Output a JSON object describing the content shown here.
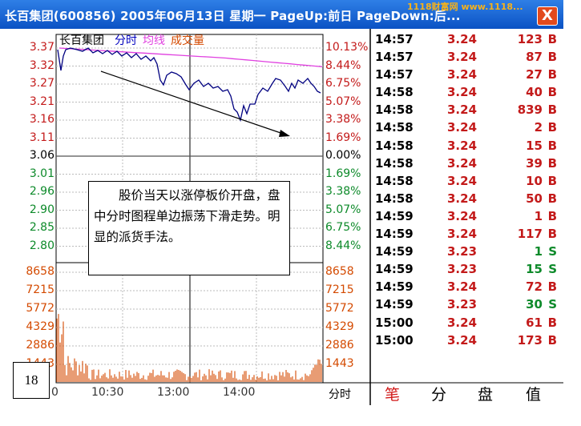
{
  "window": {
    "title": "长百集团(600856)  2005年06月13日  星期一  PageUp:前日  PageDown:后...",
    "close_label": "X",
    "watermark": "1118财富网  www.1118..."
  },
  "chart_header": {
    "stock_name": "长百集团",
    "mode": "分时",
    "avg_label": "均线",
    "vol_label": "成交量"
  },
  "price_axis_left": [
    "3.37",
    "3.32",
    "3.27",
    "3.21",
    "3.16",
    "3.11",
    "3.06",
    "3.01",
    "2.96",
    "2.90",
    "2.85",
    "2.80"
  ],
  "price_axis_right": [
    "10.13%",
    "8.44%",
    "6.75%",
    "5.07%",
    "3.38%",
    "1.69%",
    "0.00%",
    "1.69%",
    "3.38%",
    "5.07%",
    "6.75%",
    "8.44%"
  ],
  "volume_axis_left": [
    "8658",
    "7215",
    "5772",
    "4329",
    "2886",
    "1443"
  ],
  "volume_axis_right": [
    "8658",
    "7215",
    "5772",
    "4329",
    "2886",
    "1443"
  ],
  "time_axis": [
    "0",
    "10:30",
    "13:00",
    "14:00"
  ],
  "time_mode_label": "分时",
  "annotation": {
    "text": "股价当天以涨停板价开盘，盘中分时图程单边振荡下滑走势。明显的派货手法。"
  },
  "figure_number": "18",
  "colors": {
    "price_line": "#000080",
    "avg_line": "#e040e0",
    "volume_bars": "#d85a18",
    "up_text": "#c31a1a",
    "down_text": "#0d8a2a"
  },
  "ticks": [
    {
      "time": "14:57",
      "price": "3.24",
      "vol": "123",
      "side": "B"
    },
    {
      "time": "14:57",
      "price": "3.24",
      "vol": "87",
      "side": "B"
    },
    {
      "time": "14:57",
      "price": "3.24",
      "vol": "27",
      "side": "B"
    },
    {
      "time": "14:58",
      "price": "3.24",
      "vol": "40",
      "side": "B"
    },
    {
      "time": "14:58",
      "price": "3.24",
      "vol": "839",
      "side": "B"
    },
    {
      "time": "14:58",
      "price": "3.24",
      "vol": "2",
      "side": "B"
    },
    {
      "time": "14:58",
      "price": "3.24",
      "vol": "15",
      "side": "B"
    },
    {
      "time": "14:58",
      "price": "3.24",
      "vol": "39",
      "side": "B"
    },
    {
      "time": "14:58",
      "price": "3.24",
      "vol": "10",
      "side": "B"
    },
    {
      "time": "14:58",
      "price": "3.24",
      "vol": "50",
      "side": "B"
    },
    {
      "time": "14:59",
      "price": "3.24",
      "vol": "1",
      "side": "B"
    },
    {
      "time": "14:59",
      "price": "3.24",
      "vol": "117",
      "side": "B"
    },
    {
      "time": "14:59",
      "price": "3.23",
      "vol": "1",
      "side": "S"
    },
    {
      "time": "14:59",
      "price": "3.23",
      "vol": "15",
      "side": "S"
    },
    {
      "time": "14:59",
      "price": "3.24",
      "vol": "72",
      "side": "B"
    },
    {
      "time": "14:59",
      "price": "3.23",
      "vol": "30",
      "side": "S"
    },
    {
      "time": "15:00",
      "price": "3.24",
      "vol": "61",
      "side": "B"
    },
    {
      "time": "15:00",
      "price": "3.24",
      "vol": "173",
      "side": "B"
    }
  ],
  "tabs": [
    "笔",
    "分",
    "盘",
    "值"
  ]
}
